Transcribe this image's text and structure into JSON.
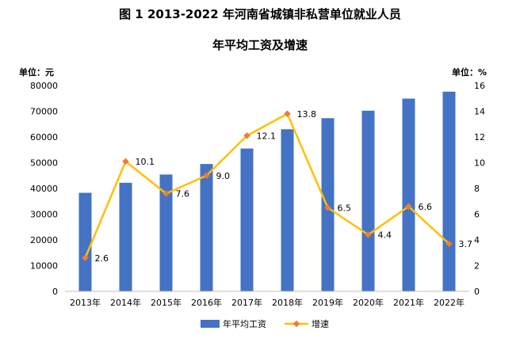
{
  "chart_data": {
    "type": "bar",
    "title": "图 1   2013-2022 年河南省城镇非私营单位就业人员",
    "subtitle": "年平均工资及增速",
    "left_axis_label": "单位：元",
    "right_axis_label": "单位：%",
    "categories": [
      "2013年",
      "2014年",
      "2015年",
      "2016年",
      "2017年",
      "2018年",
      "2019年",
      "2020年",
      "2021年",
      "2022年"
    ],
    "series": [
      {
        "name": "年平均工资",
        "type": "bar",
        "axis": "left",
        "color": "#4472C4",
        "values": [
          38300,
          42200,
          45400,
          49500,
          55500,
          63000,
          67300,
          70200,
          74900,
          77600
        ]
      },
      {
        "name": "增速",
        "type": "line",
        "axis": "right",
        "color": "#FFC000",
        "marker_color": "#ED7D31",
        "values": [
          2.6,
          10.1,
          7.6,
          9.0,
          12.1,
          13.8,
          6.5,
          4.4,
          6.6,
          3.7
        ],
        "labels": [
          "2.6",
          "10.1",
          "7.6",
          "9.0",
          "12.1",
          "13.8",
          "6.5",
          "4.4",
          "6.6",
          "3.7"
        ]
      }
    ],
    "left_ylim": [
      0,
      80000
    ],
    "left_ticks": [
      "0",
      "10000",
      "20000",
      "30000",
      "40000",
      "50000",
      "60000",
      "70000",
      "80000"
    ],
    "right_ylim": [
      0,
      16
    ],
    "right_ticks": [
      "0",
      "2",
      "4",
      "6",
      "8",
      "10",
      "12",
      "14",
      "16"
    ],
    "grid": false,
    "legend_position": "bottom"
  }
}
